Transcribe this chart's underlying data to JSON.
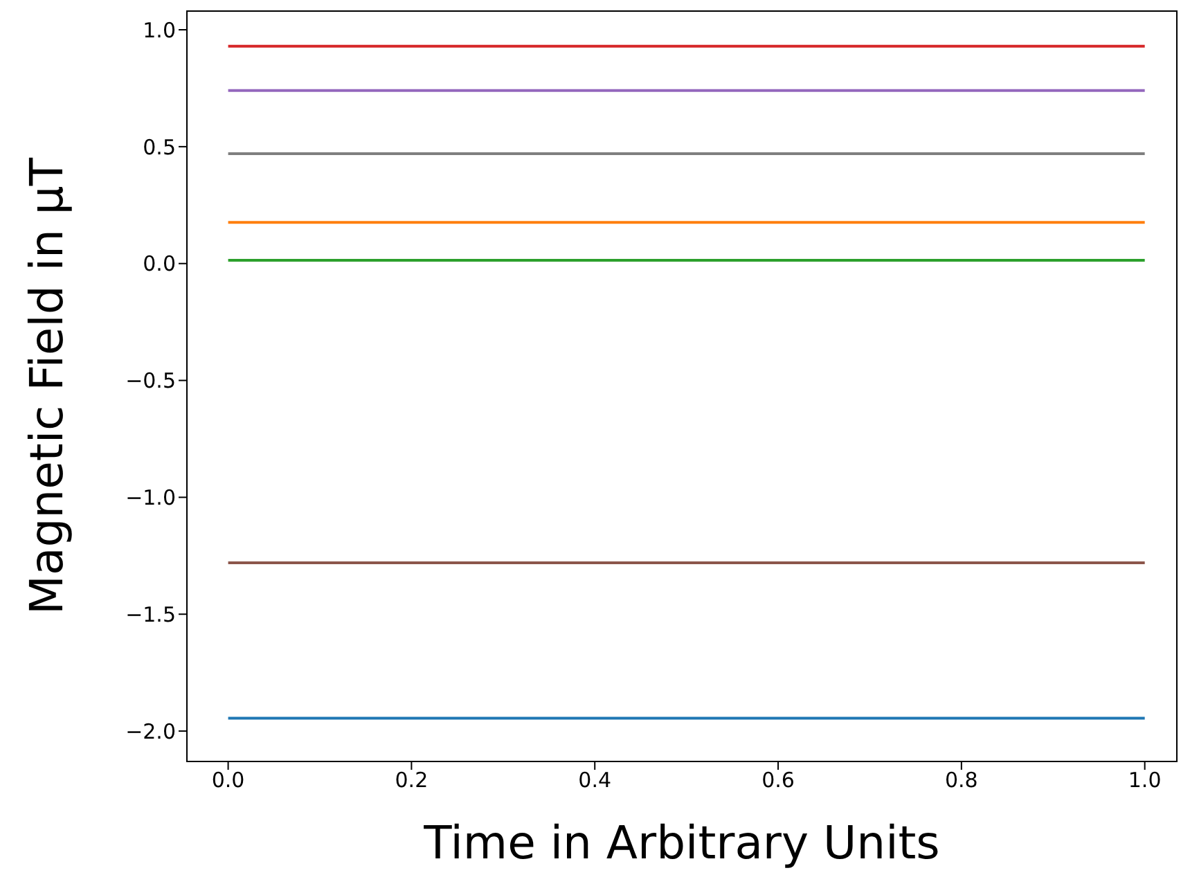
{
  "chart_data": {
    "type": "line",
    "xlabel": "Time in Arbitrary Units",
    "ylabel": "Magnetic Field in μT",
    "x": [
      0,
      1
    ],
    "series": [
      {
        "color": "#1f77b4",
        "values": [
          -1.945,
          -1.945
        ]
      },
      {
        "color": "#ff7f0e",
        "values": [
          0.176,
          0.176
        ]
      },
      {
        "color": "#2ca02c",
        "values": [
          0.014,
          0.014
        ]
      },
      {
        "color": "#d62728",
        "values": [
          0.93,
          0.93
        ]
      },
      {
        "color": "#9467bd",
        "values": [
          0.74,
          0.74
        ]
      },
      {
        "color": "#8c564b",
        "values": [
          -1.28,
          -1.28
        ]
      },
      {
        "color": "#7f7f7f",
        "values": [
          0.47,
          0.47
        ]
      }
    ],
    "xlim": [
      -0.045,
      1.035
    ],
    "ylim": [
      -2.13,
      1.08
    ],
    "xticks": [
      {
        "value": 0,
        "label": "0.0"
      },
      {
        "value": 0.2,
        "label": "0.2"
      },
      {
        "value": 0.4,
        "label": "0.4"
      },
      {
        "value": 0.6,
        "label": "0.6"
      },
      {
        "value": 0.8,
        "label": "0.8"
      },
      {
        "value": 1,
        "label": "1.0"
      }
    ],
    "yticks": [
      {
        "value": -2,
        "label": "−2.0"
      },
      {
        "value": -1.5,
        "label": "−1.5"
      },
      {
        "value": -1,
        "label": "−1.0"
      },
      {
        "value": -0.5,
        "label": "−0.5"
      },
      {
        "value": 0,
        "label": "0.0"
      },
      {
        "value": 0.5,
        "label": "0.5"
      },
      {
        "value": 1,
        "label": "1.0"
      }
    ],
    "grid": false,
    "legend": false,
    "marker": "none",
    "line_style": "solid"
  }
}
